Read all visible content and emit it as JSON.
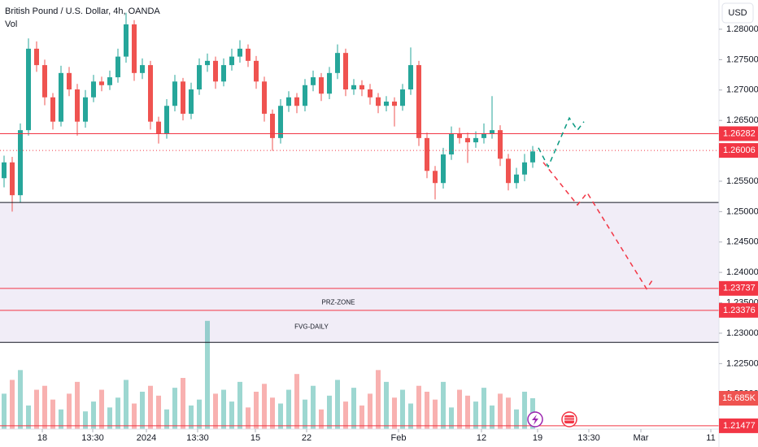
{
  "header": {
    "title": "British Pound / U.S. Dollar, 4h, OANDA",
    "indicator": "Vol",
    "currency": "USD"
  },
  "chart_data": {
    "type": "candlestick",
    "up_color": "#26a69a",
    "down_color": "#ef5350",
    "grid": false,
    "ylim": [
      1.21422,
      1.28481
    ],
    "yticks": [
      {
        "value": 1.28,
        "label": "1.28000"
      },
      {
        "value": 1.275,
        "label": "1.27500"
      },
      {
        "value": 1.27,
        "label": "1.27000"
      },
      {
        "value": 1.265,
        "label": "1.26500"
      },
      {
        "value": 1.26,
        "label": "1.26000"
      },
      {
        "value": 1.255,
        "label": "1.25500"
      },
      {
        "value": 1.25,
        "label": "1.25000"
      },
      {
        "value": 1.245,
        "label": "1.24500"
      },
      {
        "value": 1.24,
        "label": "1.24000"
      },
      {
        "value": 1.235,
        "label": "1.23500"
      },
      {
        "value": 1.23,
        "label": "1.23000"
      },
      {
        "value": 1.225,
        "label": "1.22500"
      },
      {
        "value": 1.22,
        "label": "1.22000"
      }
    ],
    "xlim": [
      -0.5,
      87.9
    ],
    "xticks": [
      {
        "value": 4.7,
        "label": "18"
      },
      {
        "value": 10.9,
        "label": "13:30"
      },
      {
        "value": 17.5,
        "label": "2024"
      },
      {
        "value": 23.8,
        "label": "13:30"
      },
      {
        "value": 30.9,
        "label": "15"
      },
      {
        "value": 37.2,
        "label": "22"
      },
      {
        "value": 48.5,
        "label": "Feb"
      },
      {
        "value": 58.7,
        "label": "12"
      },
      {
        "value": 65.6,
        "label": "19"
      },
      {
        "value": 71.9,
        "label": "13:30"
      },
      {
        "value": 78.3,
        "label": "Mar"
      },
      {
        "value": 86.9,
        "label": "11"
      }
    ],
    "ohlc": [
      [
        1.2555,
        1.2592,
        1.254,
        1.2581
      ],
      [
        1.2581,
        1.259,
        1.25,
        1.2527
      ],
      [
        1.2527,
        1.2645,
        1.2515,
        1.2634
      ],
      [
        1.2634,
        1.2785,
        1.2625,
        1.2768
      ],
      [
        1.2768,
        1.278,
        1.273,
        1.2741
      ],
      [
        1.2741,
        1.275,
        1.2675,
        1.2688
      ],
      [
        1.2688,
        1.2695,
        1.2635,
        1.2648
      ],
      [
        1.2648,
        1.274,
        1.264,
        1.2728
      ],
      [
        1.2728,
        1.2738,
        1.269,
        1.2701
      ],
      [
        1.2701,
        1.271,
        1.2625,
        1.2648
      ],
      [
        1.2648,
        1.27,
        1.2638,
        1.2688
      ],
      [
        1.2688,
        1.2725,
        1.268,
        1.2714
      ],
      [
        1.2714,
        1.2722,
        1.2698,
        1.2708
      ],
      [
        1.2708,
        1.2732,
        1.27,
        1.2721
      ],
      [
        1.2721,
        1.2768,
        1.2712,
        1.2755
      ],
      [
        1.2755,
        1.2827,
        1.2745,
        1.2808
      ],
      [
        1.2808,
        1.2815,
        1.2715,
        1.2728
      ],
      [
        1.2728,
        1.2752,
        1.2718,
        1.2741
      ],
      [
        1.2741,
        1.2748,
        1.2635,
        1.2648
      ],
      [
        1.2648,
        1.2656,
        1.2612,
        1.2628
      ],
      [
        1.2628,
        1.2685,
        1.262,
        1.2674
      ],
      [
        1.2674,
        1.2725,
        1.2665,
        1.2714
      ],
      [
        1.2714,
        1.272,
        1.265,
        1.2661
      ],
      [
        1.2661,
        1.2712,
        1.2652,
        1.2701
      ],
      [
        1.2701,
        1.2752,
        1.2692,
        1.2741
      ],
      [
        1.2741,
        1.276,
        1.273,
        1.2748
      ],
      [
        1.2748,
        1.2755,
        1.2702,
        1.2714
      ],
      [
        1.2714,
        1.2752,
        1.2706,
        1.2741
      ],
      [
        1.2741,
        1.2768,
        1.2732,
        1.2755
      ],
      [
        1.2755,
        1.2782,
        1.2745,
        1.2768
      ],
      [
        1.2768,
        1.2775,
        1.2738,
        1.2748
      ],
      [
        1.2748,
        1.2756,
        1.2702,
        1.2714
      ],
      [
        1.2714,
        1.2722,
        1.2648,
        1.2661
      ],
      [
        1.2661,
        1.2668,
        1.26,
        1.2621
      ],
      [
        1.2621,
        1.2685,
        1.2612,
        1.2674
      ],
      [
        1.2674,
        1.2698,
        1.2664,
        1.2688
      ],
      [
        1.2688,
        1.2695,
        1.2662,
        1.2674
      ],
      [
        1.2674,
        1.2718,
        1.2665,
        1.2708
      ],
      [
        1.2708,
        1.2732,
        1.2698,
        1.2721
      ],
      [
        1.2721,
        1.2728,
        1.2682,
        1.2694
      ],
      [
        1.2694,
        1.2738,
        1.2685,
        1.2728
      ],
      [
        1.2728,
        1.2775,
        1.2718,
        1.2761
      ],
      [
        1.2761,
        1.2768,
        1.269,
        1.2701
      ],
      [
        1.2701,
        1.2718,
        1.2692,
        1.2708
      ],
      [
        1.2708,
        1.2716,
        1.269,
        1.2701
      ],
      [
        1.2701,
        1.271,
        1.2676,
        1.2688
      ],
      [
        1.2688,
        1.2695,
        1.2662,
        1.2674
      ],
      [
        1.2674,
        1.269,
        1.2665,
        1.2681
      ],
      [
        1.2681,
        1.2688,
        1.264,
        1.2674
      ],
      [
        1.2674,
        1.271,
        1.2666,
        1.2701
      ],
      [
        1.2701,
        1.277,
        1.2692,
        1.2741
      ],
      [
        1.2741,
        1.2748,
        1.2608,
        1.2621
      ],
      [
        1.2621,
        1.263,
        1.2555,
        1.2567
      ],
      [
        1.2567,
        1.2575,
        1.252,
        1.2547
      ],
      [
        1.2547,
        1.2605,
        1.2538,
        1.2594
      ],
      [
        1.2594,
        1.264,
        1.2585,
        1.2628
      ],
      [
        1.2628,
        1.2638,
        1.2612,
        1.2621
      ],
      [
        1.2621,
        1.263,
        1.258,
        1.2614
      ],
      [
        1.2614,
        1.2632,
        1.2605,
        1.2621
      ],
      [
        1.2621,
        1.2645,
        1.2612,
        1.2628
      ],
      [
        1.2628,
        1.269,
        1.262,
        1.2634
      ],
      [
        1.2634,
        1.2642,
        1.2575,
        1.2587
      ],
      [
        1.2587,
        1.2595,
        1.2535,
        1.2547
      ],
      [
        1.2547,
        1.2572,
        1.2538,
        1.2561
      ],
      [
        1.2561,
        1.2595,
        1.255,
        1.2581
      ],
      [
        1.2581,
        1.2608,
        1.2572,
        1.2599
      ]
    ],
    "volume_lim": [
      0,
      218
    ],
    "volume": [
      18,
      25,
      30,
      12,
      20,
      22,
      15,
      10,
      18,
      24,
      9,
      14,
      20,
      11,
      16,
      25,
      13,
      19,
      22,
      17,
      10,
      21,
      26,
      12,
      15,
      55,
      18,
      20,
      14,
      24,
      11,
      19,
      23,
      16,
      13,
      20,
      28,
      15,
      22,
      10,
      17,
      25,
      14,
      21,
      12,
      18,
      30,
      24,
      16,
      20,
      13,
      22,
      19,
      15,
      24,
      11,
      20,
      17,
      14,
      21,
      12,
      18,
      16,
      10,
      19,
      15.685
    ],
    "volume_last_label": "15.685K",
    "zone": {
      "top": 1.2515,
      "bottom": 1.2285,
      "color": "#f1edf7"
    },
    "levels": [
      {
        "value": 1.26282,
        "color": "#f23645",
        "style": "solid"
      },
      {
        "value": 1.26006,
        "color": "#f23645",
        "style": "dotted"
      },
      {
        "value": 1.23737,
        "color": "#f23645",
        "style": "solid"
      },
      {
        "value": 1.23376,
        "color": "#f23645",
        "style": "solid"
      },
      {
        "value": 1.21477,
        "color": "#f23645",
        "style": "solid"
      }
    ],
    "lines": [
      {
        "value": 1.2515,
        "color": "#131722"
      },
      {
        "value": 1.2285,
        "color": "#131722"
      }
    ],
    "annotations": [
      {
        "text": "PRZ-ZONE",
        "x": 41.1,
        "y": 1.235
      },
      {
        "text": "FVG-DAILY",
        "x": 37.8,
        "y": 1.231
      }
    ],
    "drawings": [
      {
        "color": "#089981",
        "x": [
          65.7,
          66.9,
          69.5,
          70.5,
          71.3
        ],
        "values": [
          1.2605,
          1.2574,
          1.2654,
          1.2634,
          1.2648
        ]
      },
      {
        "color": "#f23645",
        "x": [
          66.3,
          70.5,
          71.7,
          79,
          79.7
        ],
        "values": [
          1.2581,
          1.2511,
          1.2531,
          1.2373,
          1.2387
        ]
      }
    ]
  }
}
